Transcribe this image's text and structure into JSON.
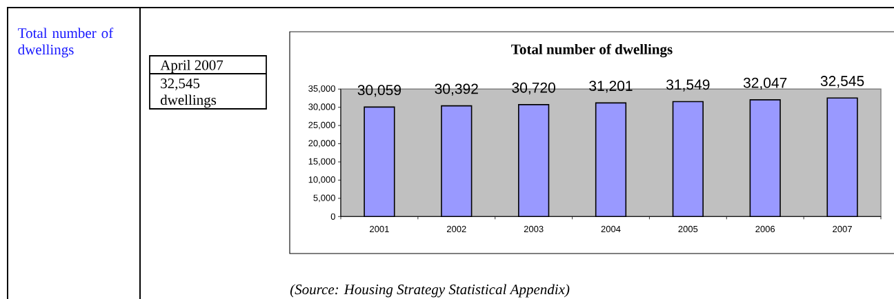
{
  "chart_data": {
    "type": "bar",
    "title": "Total number of dwellings",
    "categories": [
      "2001",
      "2002",
      "2003",
      "2004",
      "2005",
      "2006",
      "2007"
    ],
    "values": [
      30059,
      30392,
      30720,
      31201,
      31549,
      32047,
      32545
    ],
    "value_labels": [
      "30,059",
      "30,392",
      "30,720",
      "31,201",
      "31,549",
      "32,047",
      "32,545"
    ],
    "color": "#9999ff",
    "ylim": [
      0,
      35000
    ],
    "yticks": [
      0,
      {
        "value": 5000,
        "label": "5,000"
      },
      {
        "value": 10000,
        "label": "10,000"
      },
      {
        "value": 15000,
        "label": "15,000"
      },
      {
        "value": 20000,
        "label": "20,000"
      },
      {
        "value": 25000,
        "label": "25,000"
      },
      {
        "value": 30000,
        "label": "30,000"
      },
      {
        "value": 35000,
        "label": "35,000"
      }
    ],
    "annotations": [
      "Total number of dwellings",
      "April 2007",
      "32,545 dwellings",
      "(Source: Housing Strategy Statistical Appendix)"
    ]
  }
}
